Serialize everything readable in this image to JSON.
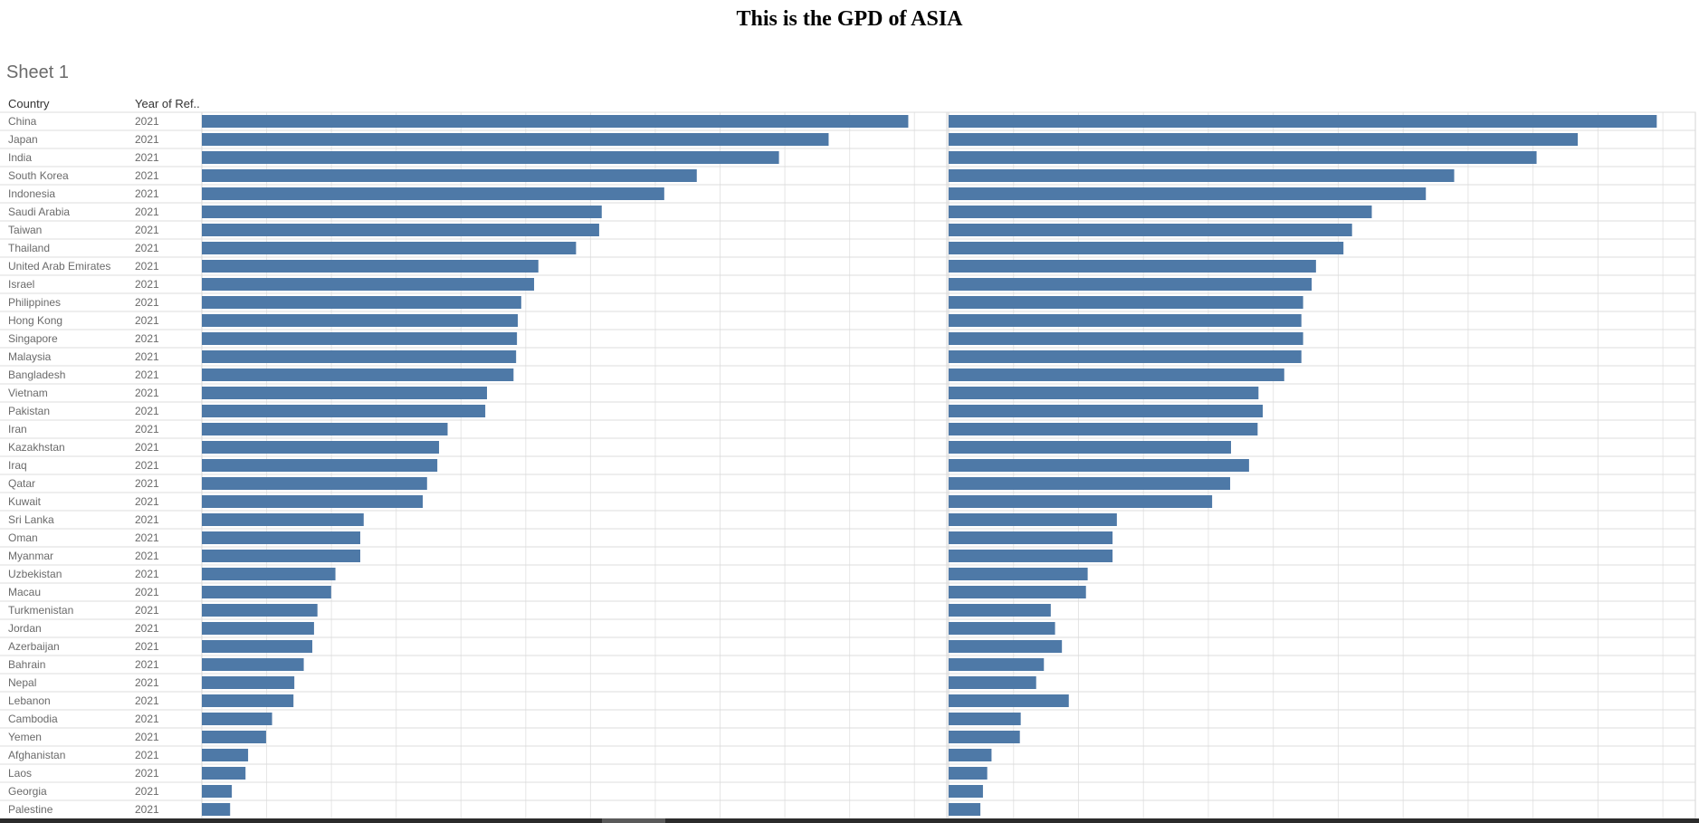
{
  "page": {
    "title": "This is the GPD of ASIA",
    "sheet_title": "Sheet 1"
  },
  "colors": {
    "bar": "#4e79a7",
    "row_text": "#6a6a6a",
    "grid": "#e6e6e6",
    "row_divider": "#dcdcdc"
  },
  "chart_data": {
    "type": "bar",
    "orientation": "horizontal",
    "columns": [
      "Country",
      "Year of Ref.."
    ],
    "categories": [
      "China",
      "Japan",
      "India",
      "South Korea",
      "Indonesia",
      "Saudi Arabia",
      "Taiwan",
      "Thailand",
      "United Arab Emirates",
      "Israel",
      "Philippines",
      "Hong Kong",
      "Singapore",
      "Malaysia",
      "Bangladesh",
      "Vietnam",
      "Pakistan",
      "Iran",
      "Kazakhstan",
      "Iraq",
      "Qatar",
      "Kuwait",
      "Sri Lanka",
      "Oman",
      "Myanmar",
      "Uzbekistan",
      "Macau",
      "Turkmenistan",
      "Jordan",
      "Azerbaijan",
      "Bahrain",
      "Nepal",
      "Lebanon",
      "Cambodia",
      "Yemen",
      "Afghanistan",
      "Laos",
      "Georgia",
      "Palestine"
    ],
    "years": [
      "2021",
      "2021",
      "2021",
      "2021",
      "2021",
      "2021",
      "2021",
      "2021",
      "2021",
      "2021",
      "2021",
      "2021",
      "2021",
      "2021",
      "2021",
      "2021",
      "2021",
      "2021",
      "2021",
      "2021",
      "2021",
      "2021",
      "2021",
      "2021",
      "2021",
      "2021",
      "2021",
      "2021",
      "2021",
      "2021",
      "2021",
      "2021",
      "2021",
      "2021",
      "2021",
      "2021",
      "2021",
      "2021",
      "2021"
    ],
    "xlim": [
      0,
      8.7
    ],
    "series": [
      {
        "values": [
          8.25,
          7.32,
          6.74,
          5.78,
          5.4,
          4.67,
          4.64,
          4.37,
          3.93,
          3.88,
          3.73,
          3.69,
          3.68,
          3.67,
          3.64,
          3.33,
          3.31,
          2.87,
          2.77,
          2.75,
          2.63,
          2.58,
          1.89,
          1.85,
          1.85,
          1.56,
          1.51,
          1.35,
          1.31,
          1.29,
          1.19,
          1.08,
          1.07,
          0.82,
          0.75,
          0.54,
          0.51,
          0.35,
          0.33
        ]
      },
      {
        "values": [
          8.25,
          7.33,
          6.85,
          5.89,
          5.56,
          4.93,
          4.7,
          4.6,
          4.28,
          4.23,
          4.13,
          4.11,
          4.13,
          4.11,
          3.91,
          3.61,
          3.66,
          3.6,
          3.29,
          3.5,
          3.28,
          3.07,
          1.96,
          1.91,
          1.91,
          1.62,
          1.6,
          1.19,
          1.24,
          1.32,
          1.11,
          1.02,
          1.4,
          0.84,
          0.83,
          0.5,
          0.45,
          0.4,
          0.37
        ]
      }
    ]
  }
}
